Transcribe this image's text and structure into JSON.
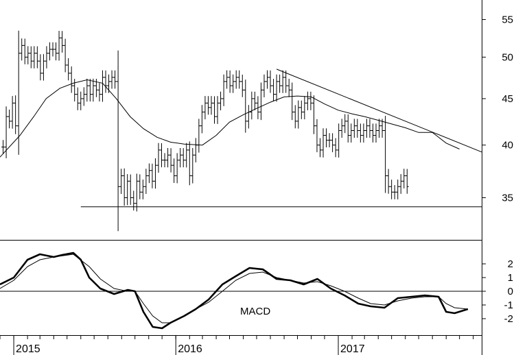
{
  "chart_data": [
    {
      "type": "ohlc",
      "panel": "price",
      "ylim": [
        32,
        57
      ],
      "scale": "log",
      "yticks": [
        35,
        40,
        45,
        50,
        55
      ],
      "xlim": [
        "2014-12-01",
        "2017-11-20"
      ],
      "xticks": [
        {
          "date": "2015-01-01",
          "label": "2015"
        },
        {
          "date": "2016-01-01",
          "label": "2016"
        },
        {
          "date": "2017-01-01",
          "label": "2017"
        }
      ],
      "weekly_close": [
        39.8,
        43.0,
        42.5,
        44.5,
        42.0,
        50.5,
        51.5,
        50.0,
        50.5,
        49.5,
        50.5,
        49.5,
        48.0,
        49.5,
        50.5,
        51.0,
        51.0,
        50.5,
        52.5,
        51.5,
        49.0,
        48.0,
        46.5,
        45.5,
        44.5,
        45.0,
        45.5,
        46.5,
        45.5,
        46.5,
        46.0,
        45.5,
        47.5,
        46.5,
        47.0,
        47.5,
        47.0,
        36.0,
        37.0,
        35.0,
        36.5,
        35.0,
        34.5,
        36.5,
        35.5,
        36.0,
        37.0,
        37.5,
        36.5,
        38.0,
        39.5,
        38.5,
        38.5,
        39.0,
        38.0,
        37.0,
        38.5,
        39.0,
        38.5,
        39.5,
        37.0,
        39.0,
        40.0,
        42.0,
        43.5,
        44.5,
        44.0,
        44.5,
        43.0,
        44.5,
        45.0,
        47.0,
        47.5,
        46.5,
        47.0,
        47.5,
        47.0,
        46.0,
        42.5,
        43.5,
        45.0,
        44.5,
        43.5,
        46.0,
        47.0,
        47.5,
        46.5,
        45.5,
        47.0,
        46.5,
        47.5,
        46.5,
        46.0,
        43.5,
        42.5,
        44.0,
        43.5,
        44.5,
        45.0,
        44.5,
        42.0,
        40.0,
        39.5,
        41.0,
        40.5,
        40.5,
        40.0,
        39.5,
        41.5,
        42.0,
        42.5,
        41.0,
        41.5,
        42.0,
        41.5,
        41.0,
        41.5,
        42.0,
        41.5,
        41.0,
        41.5,
        42.0,
        41.5,
        37.0,
        36.0,
        35.5,
        35.5,
        36.0,
        36.5,
        37.0,
        36.0
      ],
      "moving_average": [
        [
          "2014-12-01",
          38.8
        ],
        [
          "2015-01-15",
          41.0
        ],
        [
          "2015-02-15",
          43.0
        ],
        [
          "2015-03-15",
          45.0
        ],
        [
          "2015-04-15",
          46.2
        ],
        [
          "2015-05-15",
          46.8
        ],
        [
          "2015-06-15",
          47.2
        ],
        [
          "2015-07-20",
          46.8
        ],
        [
          "2015-08-20",
          45.0
        ],
        [
          "2015-09-20",
          43.0
        ],
        [
          "2015-10-20",
          41.7
        ],
        [
          "2015-11-20",
          40.8
        ],
        [
          "2015-12-20",
          40.3
        ],
        [
          "2016-01-20",
          40.1
        ],
        [
          "2016-03-01",
          40.0
        ],
        [
          "2016-04-01",
          41.0
        ],
        [
          "2016-05-01",
          42.4
        ],
        [
          "2016-06-01",
          43.2
        ],
        [
          "2016-07-01",
          43.9
        ],
        [
          "2016-08-01",
          44.6
        ],
        [
          "2016-09-01",
          45.2
        ],
        [
          "2016-10-01",
          45.3
        ],
        [
          "2016-11-01",
          45.2
        ],
        [
          "2016-12-01",
          44.4
        ],
        [
          "2017-01-01",
          43.7
        ],
        [
          "2017-02-01",
          43.3
        ],
        [
          "2017-03-01",
          43.0
        ],
        [
          "2017-04-01",
          42.6
        ],
        [
          "2017-05-01",
          42.2
        ],
        [
          "2017-06-01",
          41.8
        ],
        [
          "2017-07-01",
          41.3
        ],
        [
          "2017-08-01",
          41.3
        ],
        [
          "2017-09-01",
          40.2
        ],
        [
          "2017-10-01",
          39.6
        ]
      ],
      "trendlines": [
        {
          "name": "resistance",
          "from": [
            "2016-08-15",
            48.5
          ],
          "to": [
            "2017-11-20",
            39.3
          ]
        },
        {
          "name": "support",
          "from": [
            "2015-06-01",
            34.2
          ],
          "to": [
            "2017-11-20",
            34.2
          ]
        }
      ]
    },
    {
      "type": "line",
      "panel": "macd",
      "label": "MACD",
      "ylim": [
        -3,
        3.5
      ],
      "yticks": [
        {
          "value": 2,
          "label": "2"
        },
        {
          "value": 1,
          "label": "1"
        },
        {
          "value": 0,
          "label": "0"
        },
        {
          "value": -1,
          "label": "-1"
        },
        {
          "value": -2,
          "label": "-2"
        }
      ],
      "series": [
        {
          "values": [
            [
              "2014-12-01",
              0.5
            ],
            [
              "2015-01-01",
              1.0
            ],
            [
              "2015-02-01",
              2.3
            ],
            [
              "2015-03-01",
              2.7
            ],
            [
              "2015-04-01",
              2.5
            ],
            [
              "2015-04-20",
              2.65
            ],
            [
              "2015-05-15",
              2.8
            ],
            [
              "2015-06-01",
              2.3
            ],
            [
              "2015-06-20",
              1.0
            ],
            [
              "2015-07-15",
              0.2
            ],
            [
              "2015-08-15",
              -0.2
            ],
            [
              "2015-09-15",
              0.1
            ],
            [
              "2015-10-01",
              0.0
            ],
            [
              "2015-10-20",
              -1.5
            ],
            [
              "2015-11-10",
              -2.6
            ],
            [
              "2015-12-01",
              -2.7
            ],
            [
              "2015-12-20",
              -2.3
            ],
            [
              "2016-01-20",
              -1.8
            ],
            [
              "2016-02-15",
              -1.3
            ],
            [
              "2016-03-15",
              -0.6
            ],
            [
              "2016-04-15",
              0.5
            ],
            [
              "2016-05-15",
              1.1
            ],
            [
              "2016-06-15",
              1.7
            ],
            [
              "2016-07-15",
              1.6
            ],
            [
              "2016-08-15",
              0.9
            ],
            [
              "2016-09-15",
              0.8
            ],
            [
              "2016-10-15",
              0.5
            ],
            [
              "2016-11-15",
              0.9
            ],
            [
              "2016-12-15",
              0.2
            ],
            [
              "2017-01-15",
              -0.3
            ],
            [
              "2017-02-15",
              -0.9
            ],
            [
              "2017-03-15",
              -1.1
            ],
            [
              "2017-04-15",
              -1.2
            ],
            [
              "2017-05-15",
              -0.5
            ],
            [
              "2017-06-15",
              -0.4
            ],
            [
              "2017-07-15",
              -0.3
            ],
            [
              "2017-08-15",
              -0.4
            ],
            [
              "2017-09-01",
              -1.5
            ],
            [
              "2017-09-20",
              -1.6
            ],
            [
              "2017-10-20",
              -1.3
            ]
          ]
        },
        {
          "values": [
            [
              "2014-12-01",
              0.2
            ],
            [
              "2015-01-01",
              0.8
            ],
            [
              "2015-02-01",
              1.8
            ],
            [
              "2015-03-01",
              2.3
            ],
            [
              "2015-04-01",
              2.5
            ],
            [
              "2015-05-15",
              2.7
            ],
            [
              "2015-06-20",
              1.8
            ],
            [
              "2015-07-15",
              0.9
            ],
            [
              "2015-08-15",
              0.2
            ],
            [
              "2015-09-15",
              0.0
            ],
            [
              "2015-10-01",
              0.0
            ],
            [
              "2015-10-20",
              -0.9
            ],
            [
              "2015-11-10",
              -1.8
            ],
            [
              "2015-12-01",
              -2.3
            ],
            [
              "2015-12-20",
              -2.3
            ],
            [
              "2016-01-20",
              -1.8
            ],
            [
              "2016-02-15",
              -1.3
            ],
            [
              "2016-03-15",
              -0.8
            ],
            [
              "2016-04-15",
              0.0
            ],
            [
              "2016-05-15",
              0.8
            ],
            [
              "2016-06-15",
              1.3
            ],
            [
              "2016-07-15",
              1.4
            ],
            [
              "2016-08-15",
              1.0
            ],
            [
              "2016-09-15",
              0.8
            ],
            [
              "2016-10-15",
              0.6
            ],
            [
              "2016-11-15",
              0.7
            ],
            [
              "2016-12-15",
              0.4
            ],
            [
              "2017-01-15",
              0.0
            ],
            [
              "2017-02-15",
              -0.5
            ],
            [
              "2017-03-15",
              -0.9
            ],
            [
              "2017-04-15",
              -1.0
            ],
            [
              "2017-05-15",
              -0.7
            ],
            [
              "2017-06-15",
              -0.5
            ],
            [
              "2017-07-15",
              -0.4
            ],
            [
              "2017-08-15",
              -0.4
            ],
            [
              "2017-09-01",
              -0.9
            ],
            [
              "2017-09-20",
              -1.2
            ],
            [
              "2017-10-20",
              -1.3
            ]
          ]
        }
      ]
    }
  ]
}
